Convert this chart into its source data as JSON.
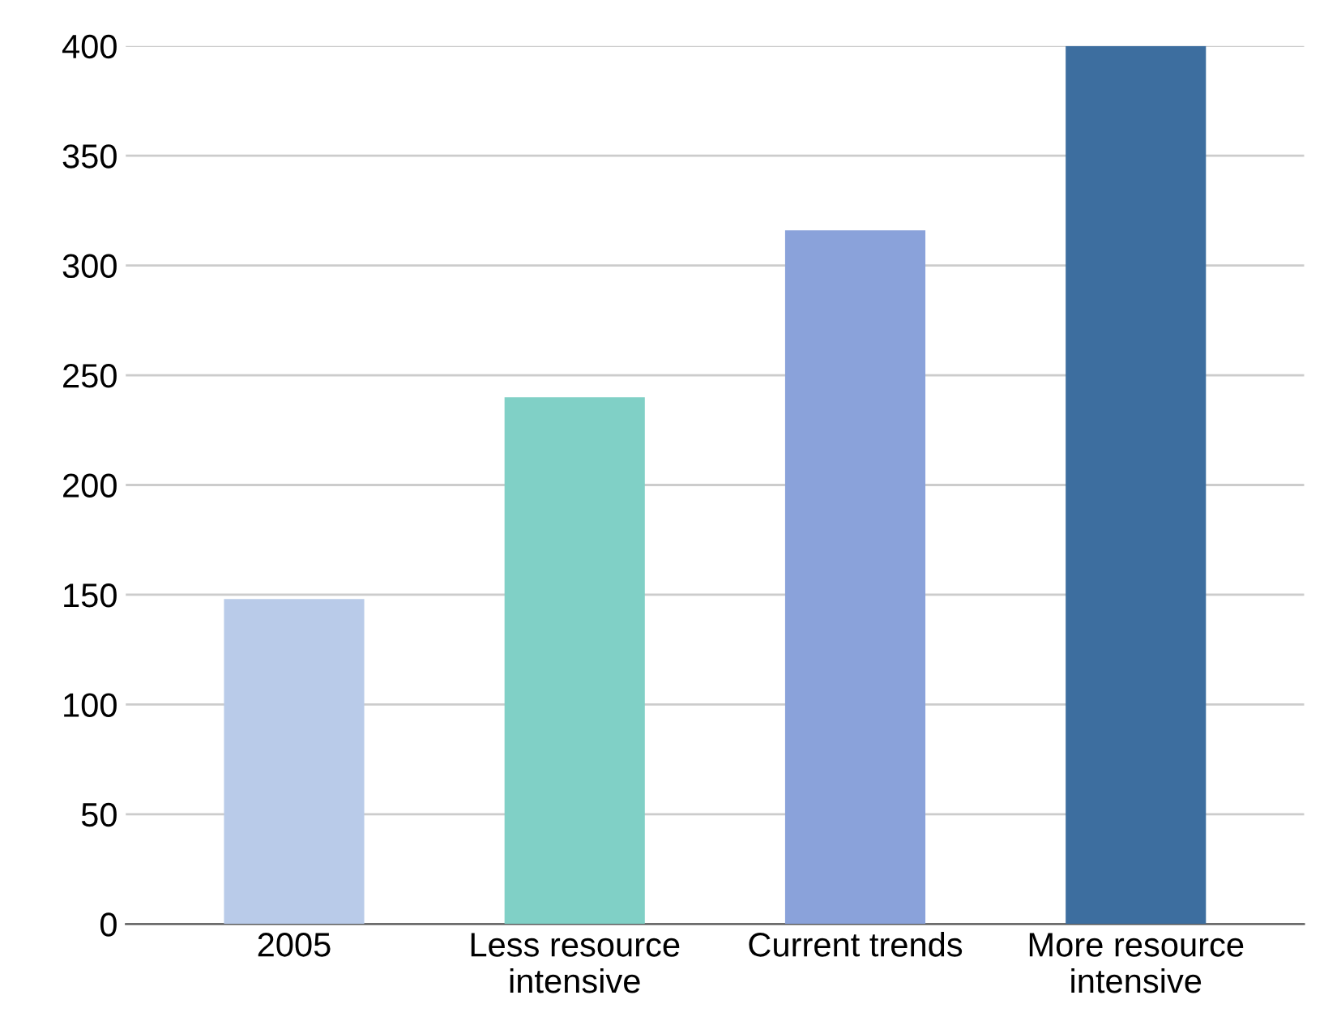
{
  "chart_data": {
    "type": "bar",
    "categories": [
      "2005",
      "Less resource\nintensive",
      "Current trends",
      "More resource\nintensive"
    ],
    "values": [
      148,
      240,
      316,
      400
    ],
    "colors": [
      "#b9cbe9",
      "#80d0c6",
      "#8aa2da",
      "#3d6e9f"
    ],
    "ylim": [
      0,
      400
    ],
    "yticks": [
      0,
      50,
      100,
      150,
      200,
      250,
      300,
      350,
      400
    ],
    "grid": "y"
  }
}
